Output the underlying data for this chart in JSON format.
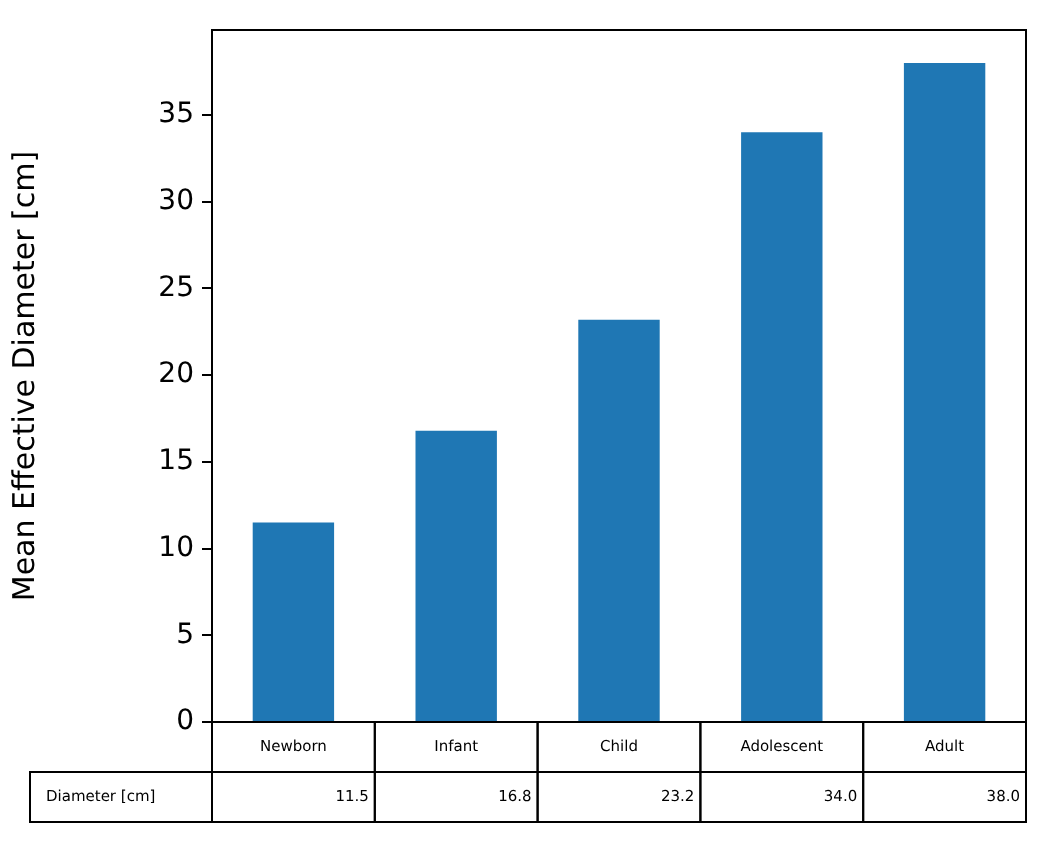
{
  "chart_data": {
    "type": "bar",
    "ylabel": "Mean Effective Diameter [cm]",
    "categories": [
      "Newborn",
      "Infant",
      "Child",
      "Adolescent",
      "Adult"
    ],
    "series": [
      {
        "name": "Diameter [cm]",
        "color": "#1f77b4",
        "values": [
          11.5,
          16.8,
          23.2,
          34.0,
          38.0
        ],
        "value_labels": [
          "11.5",
          "16.8",
          "23.2",
          "34.0",
          "38.0"
        ]
      }
    ],
    "ylim": [
      0,
      39.9
    ],
    "yticks": [
      0,
      5,
      10,
      15,
      20,
      25,
      30,
      35
    ]
  }
}
